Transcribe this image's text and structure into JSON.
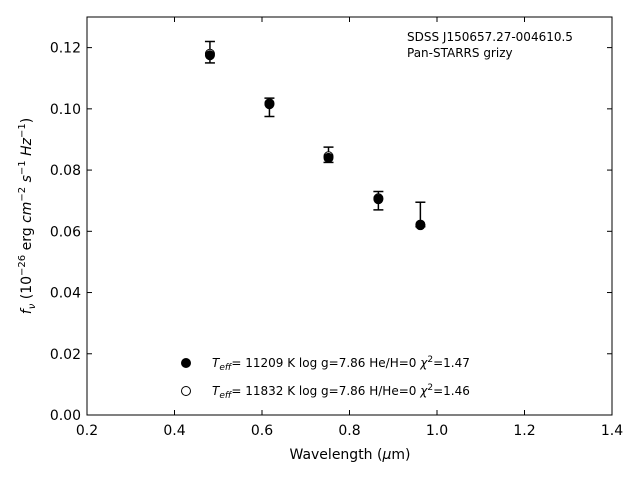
{
  "chart_data": {
    "type": "scatter",
    "title": "",
    "xlabel": "Wavelength (μm)",
    "ylabel": "f_ν (10^−26 erg cm^−2 s^−1 Hz^−1)",
    "xlim": [
      0.2,
      1.4
    ],
    "ylim": [
      0.0,
      0.13
    ],
    "xticks": [
      "0.2",
      "0.4",
      "0.6",
      "0.8",
      "1.0",
      "1.2",
      "1.4"
    ],
    "yticks": [
      "0.00",
      "0.02",
      "0.04",
      "0.06",
      "0.08",
      "0.10",
      "0.12"
    ],
    "grid": false,
    "annotation": [
      "SDSS J150657.27-004610.5",
      "Pan-STARRS grizy"
    ],
    "observed": [
      {
        "x": 0.481,
        "y": 0.1185,
        "err": 0.0035
      },
      {
        "x": 0.617,
        "y": 0.1005,
        "err": 0.003
      },
      {
        "x": 0.752,
        "y": 0.085,
        "err": 0.0025
      },
      {
        "x": 0.866,
        "y": 0.07,
        "err": 0.003
      },
      {
        "x": 0.962,
        "y": 0.0655,
        "err": 0.004
      }
    ],
    "series": [
      {
        "name": "T_eff= 11209 K  log g=7.86  He/H=0  χ²=1.47",
        "marker": "filled-circle",
        "x": [
          0.481,
          0.617,
          0.752,
          0.866,
          0.962
        ],
        "y": [
          0.1175,
          0.1015,
          0.084,
          0.0705,
          0.062
        ]
      },
      {
        "name": "T_eff= 11832 K  log g=7.86  H/He=0  χ²=1.46",
        "marker": "open-circle",
        "x": [
          0.481,
          0.617,
          0.752,
          0.866,
          0.962
        ],
        "y": [
          0.118,
          0.1018,
          0.0845,
          0.0708,
          0.0622
        ]
      }
    ],
    "legend_position": "bottom-center"
  }
}
